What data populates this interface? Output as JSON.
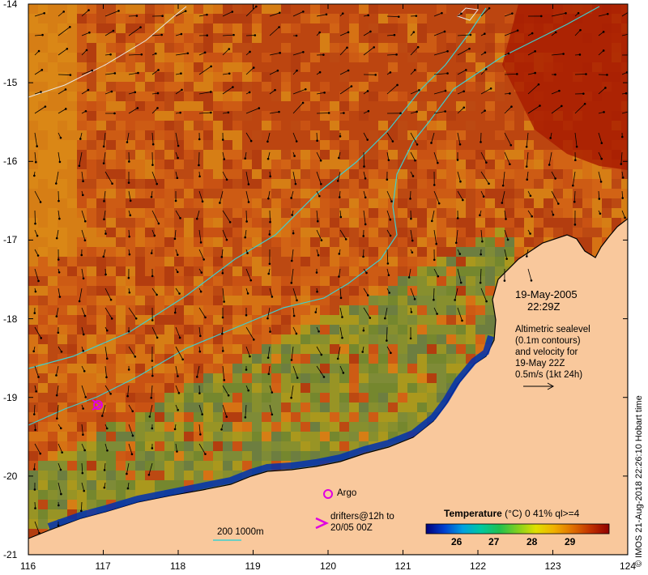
{
  "map": {
    "lon_range": [
      116,
      124
    ],
    "lat_range": [
      -21,
      -14
    ],
    "lon_ticks": [
      "116",
      "117",
      "118",
      "119",
      "120",
      "121",
      "122",
      "123",
      "124"
    ],
    "lat_ticks": [
      "-14",
      "-15",
      "-16",
      "-17",
      "-18",
      "-19",
      "-20",
      "-21"
    ],
    "land_color": "#f9c89c",
    "coast_color": "#000000",
    "contour_color": "#3fcfcf",
    "arrow_color": "#000000"
  },
  "date": "19-May-2005",
  "time": "22:29Z",
  "altimetry": {
    "lines": [
      "Altimetric sealevel",
      "(0.1m contours)",
      "and velocity for",
      "19-May 22Z",
      "0.5m/s (1kt 24h)"
    ]
  },
  "legend": {
    "argo_label": "Argo",
    "argo_color": "#e000e0",
    "drifters_label_1": "drifters@12h to",
    "drifters_label_2": "20/05 00Z",
    "drifter_color": "#e000e0",
    "depth_label": "200  1000m",
    "depth_color": "#3fcfcf"
  },
  "colorbar": {
    "title_bold": "Temperature",
    "title_rest": "(°C) 0 41% ql>=4",
    "tick_labels": [
      "26",
      "27",
      "28",
      "29"
    ],
    "colors": [
      "#00007a",
      "#0040d0",
      "#00a0e0",
      "#00c8a0",
      "#20c050",
      "#80d020",
      "#e0e000",
      "#f0b000",
      "#e07000",
      "#c03000",
      "#900000"
    ]
  },
  "credit": "© IMOS 21-Aug-2018 22:26:10 Hobart time"
}
